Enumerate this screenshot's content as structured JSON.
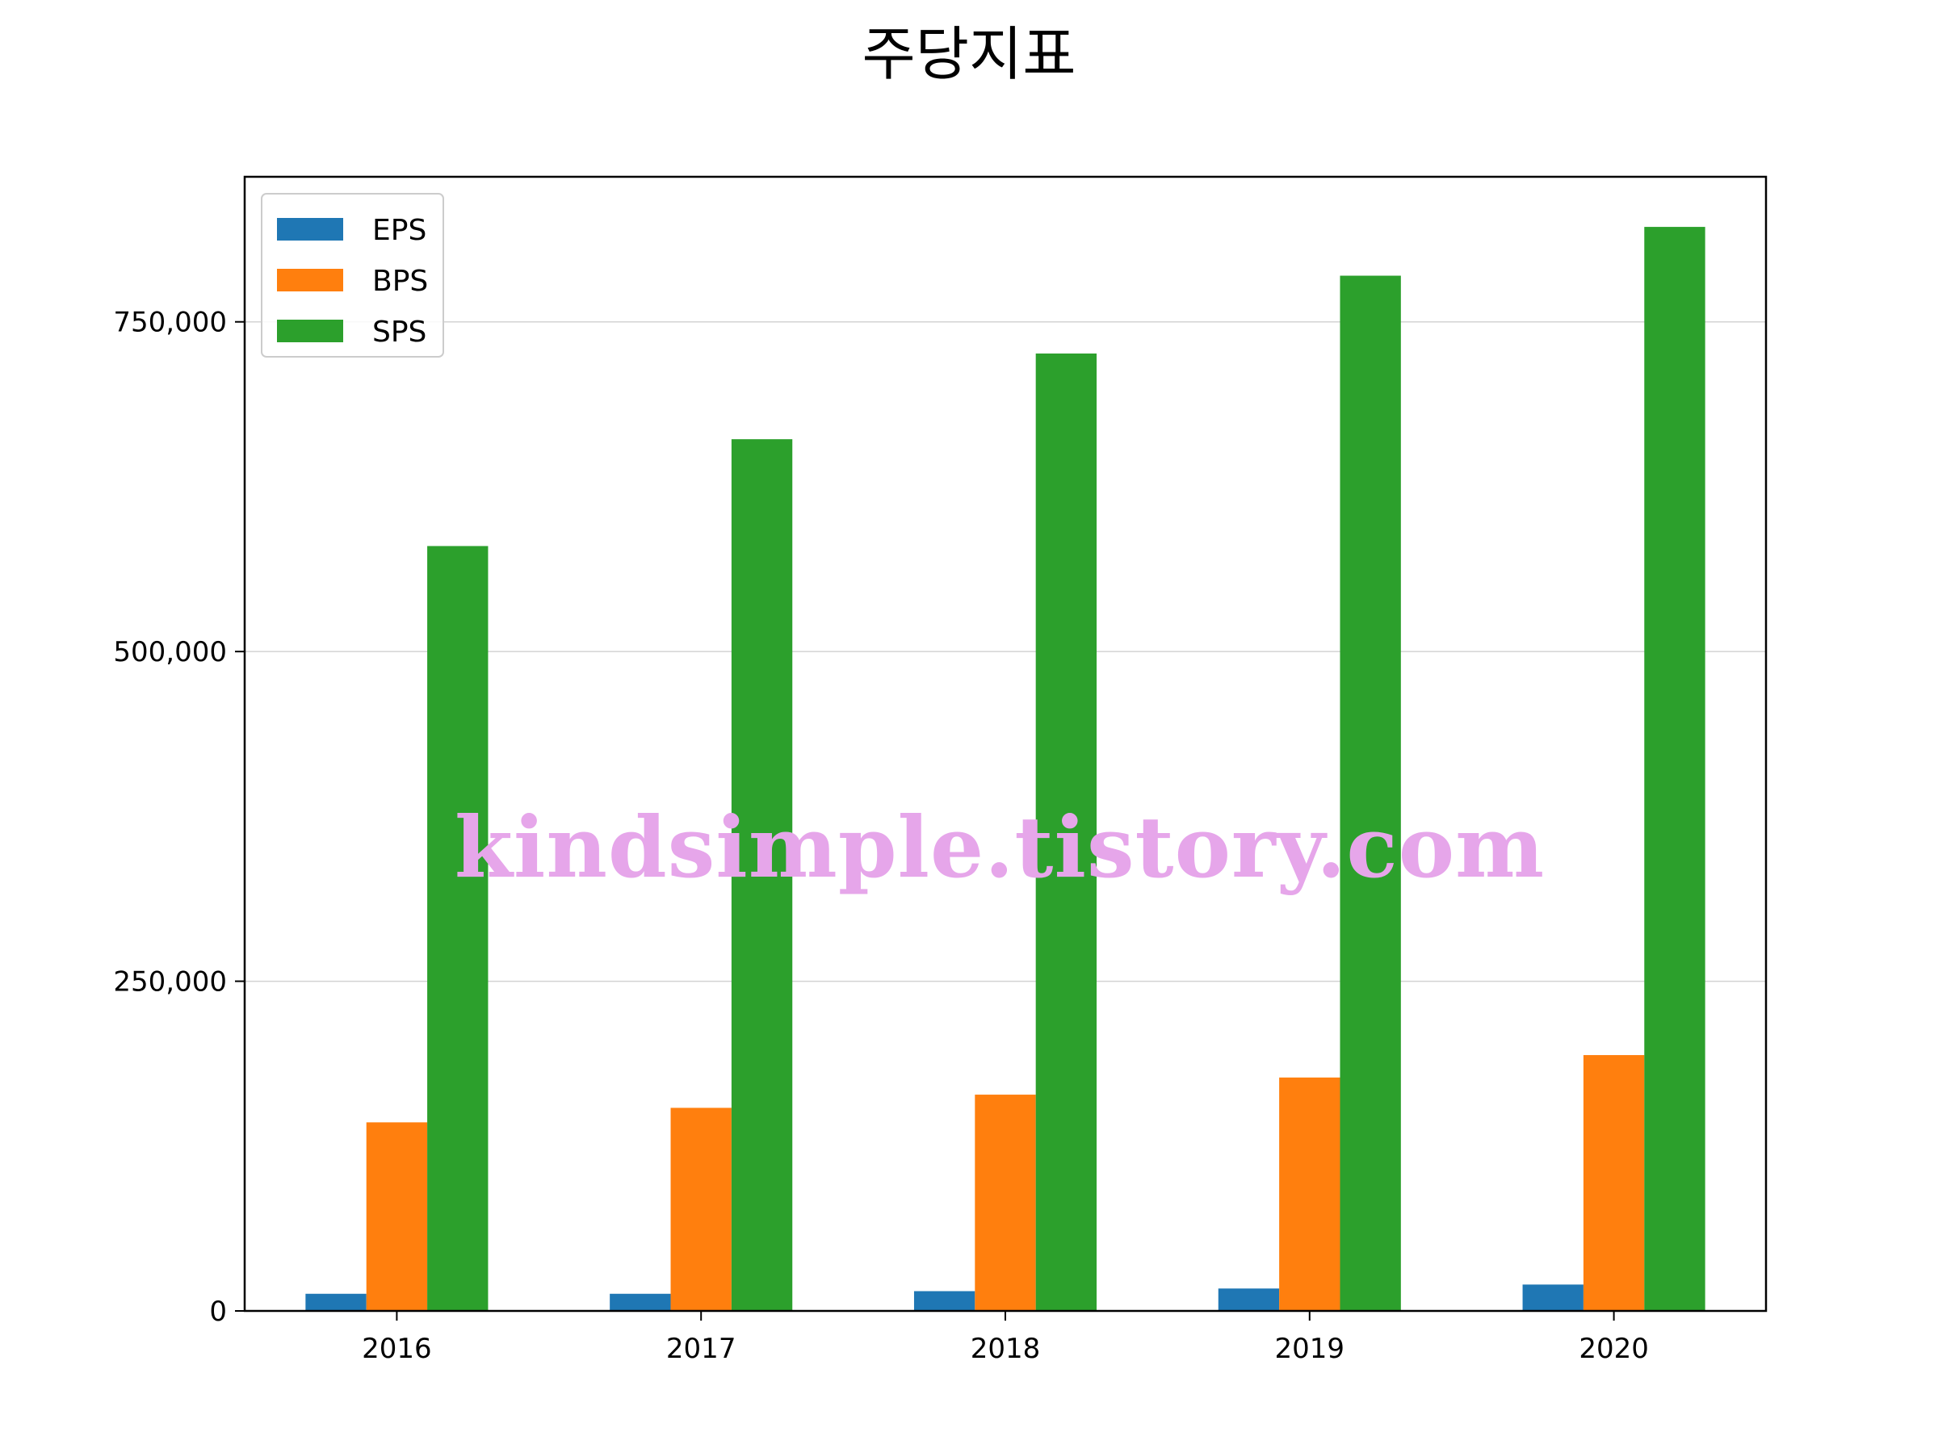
{
  "chart_data": {
    "type": "bar",
    "title": "주당지표",
    "categories": [
      "2016",
      "2017",
      "2018",
      "2019",
      "2020"
    ],
    "series": [
      {
        "name": "EPS",
        "color": "#1f77b4",
        "values": [
          13000,
          13000,
          15000,
          17000,
          20000
        ]
      },
      {
        "name": "BPS",
        "color": "#ff7f0e",
        "values": [
          143000,
          154000,
          164000,
          177000,
          194000
        ]
      },
      {
        "name": "SPS",
        "color": "#2ca02c",
        "values": [
          580000,
          661000,
          726000,
          785000,
          822000
        ]
      }
    ],
    "xlabel": "",
    "ylabel": "",
    "ylim": [
      0,
      860000
    ],
    "yticks": [
      0,
      250000,
      500000,
      750000
    ],
    "ytick_labels": [
      "0",
      "250,000",
      "500,000",
      "750,000"
    ],
    "grid": "horizontal",
    "grid_color": "#d3d3d3",
    "legend_placement": "top-left"
  },
  "watermark": {
    "text": "kindsimple.tistory.com",
    "color": "#e6a6ea"
  }
}
